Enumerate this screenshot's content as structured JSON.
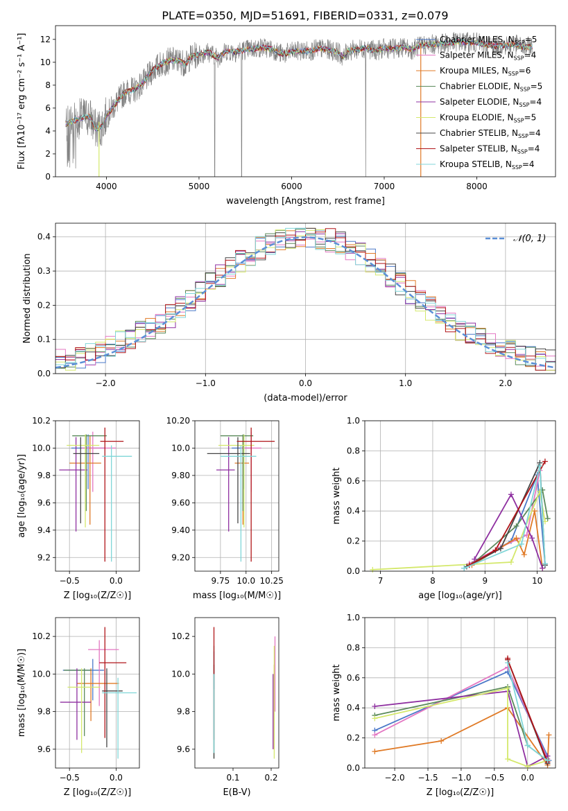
{
  "figure": {
    "title": "PLATE=0350, MJD=51691, FIBERID=0331, z=0.079"
  },
  "models": [
    {
      "name": "Chabrier MILES",
      "nssp": "5",
      "color": "#4a78c8"
    },
    {
      "name": "Salpeter MILES",
      "nssp": "4",
      "color": "#e377c2"
    },
    {
      "name": "Kroupa MILES",
      "nssp": "6",
      "color": "#e07a26"
    },
    {
      "name": "Chabrier ELODIE",
      "nssp": "5",
      "color": "#5b8a5b"
    },
    {
      "name": "Salpeter ELODIE",
      "nssp": "4",
      "color": "#8e2fa0"
    },
    {
      "name": "Kroupa ELODIE",
      "nssp": "5",
      "color": "#d4e86b"
    },
    {
      "name": "Chabrier STELIB",
      "nssp": "4",
      "color": "#444444"
    },
    {
      "name": "Salpeter STELIB",
      "nssp": "4",
      "color": "#b01418"
    },
    {
      "name": "Kroupa STELIB",
      "nssp": "4",
      "color": "#7fd6d8"
    }
  ],
  "colors": {
    "data": "#808080",
    "normal": "#5b8fd6",
    "grid": "#b0b0b0"
  },
  "chart_data": [
    {
      "id": "spectrum",
      "type": "line",
      "xlabel": "wavelength [Angstrom, rest frame]",
      "ylabel_tex": "Flux [fλ10⁻¹⁷ erg cm⁻² s⁻¹ A⁻¹]",
      "xlim": [
        3450,
        8850
      ],
      "ylim": [
        0,
        13.2
      ],
      "xticks": [
        4000,
        5000,
        6000,
        7000,
        8000
      ],
      "yticks": [
        0,
        2,
        4,
        6,
        8,
        10,
        12
      ],
      "grid": false,
      "legend": "top-right",
      "continuum": [
        [
          3560,
          4.6
        ],
        [
          3650,
          4.9
        ],
        [
          3750,
          5.2
        ],
        [
          3820,
          5.3
        ],
        [
          3880,
          4.2
        ],
        [
          3940,
          4.3
        ],
        [
          4000,
          5.3
        ],
        [
          4100,
          6.4
        ],
        [
          4200,
          7.4
        ],
        [
          4300,
          7.6
        ],
        [
          4400,
          8.2
        ],
        [
          4500,
          9.3
        ],
        [
          4600,
          9.9
        ],
        [
          4700,
          10.2
        ],
        [
          4800,
          10.1
        ],
        [
          4860,
          9.8
        ],
        [
          4900,
          10.4
        ],
        [
          5000,
          10.7
        ],
        [
          5100,
          10.9
        ],
        [
          5200,
          10.4
        ],
        [
          5300,
          11.0
        ],
        [
          5400,
          10.9
        ],
        [
          5500,
          11.1
        ],
        [
          5600,
          11.2
        ],
        [
          5700,
          11.3
        ],
        [
          5800,
          11.1
        ],
        [
          5900,
          10.7
        ],
        [
          6000,
          10.9
        ],
        [
          6100,
          11.0
        ],
        [
          6200,
          11.0
        ],
        [
          6300,
          11.2
        ],
        [
          6400,
          11.1
        ],
        [
          6500,
          10.9
        ],
        [
          6563,
          10.4
        ],
        [
          6600,
          11.0
        ],
        [
          6700,
          11.1
        ],
        [
          6800,
          11.3
        ],
        [
          6900,
          11.0
        ],
        [
          7000,
          11.2
        ],
        [
          7100,
          11.2
        ],
        [
          7200,
          11.3
        ],
        [
          7300,
          11.1
        ],
        [
          7400,
          11.5
        ],
        [
          7600,
          11.6
        ],
        [
          7800,
          11.8
        ],
        [
          8000,
          11.7
        ],
        [
          8200,
          11.4
        ],
        [
          8400,
          11.6
        ],
        [
          8500,
          11.3
        ],
        [
          8600,
          11.4
        ]
      ]
    },
    {
      "id": "residuals",
      "type": "area",
      "xlabel": "(data-model)/error",
      "ylabel": "Normed distribution",
      "xlim": [
        -2.5,
        2.5
      ],
      "ylim": [
        0,
        0.44
      ],
      "xticks": [
        -2,
        -1,
        0,
        1,
        2
      ],
      "yticks": [
        0.0,
        0.1,
        0.2,
        0.3,
        0.4
      ],
      "grid": true,
      "legend": "top-right",
      "normal_label": "𝒩(0, 1)",
      "bin_width": 0.1
    },
    {
      "id": "age-vs-Z",
      "type": "scatter",
      "xlabel": "Z [log₁₀(Z/Z☉)]",
      "ylabel": "age  [log₁₀(age/yr)]",
      "xlim": [
        -0.65,
        0.25
      ],
      "ylim": [
        9.1,
        10.2
      ],
      "xticks": [
        -0.5,
        0.0
      ],
      "yticks": [
        9.2,
        9.4,
        9.6,
        9.8,
        10.0,
        10.2
      ],
      "grid": true,
      "points": [
        {
          "x": -0.3,
          "xe": [
            0.18,
            0.18
          ],
          "y": 10.0,
          "ye": [
            0.3,
            0.1
          ]
        },
        {
          "x": -0.25,
          "xe": [
            0.12,
            0.25
          ],
          "y": 10.0,
          "ye": [
            0.32,
            0.12
          ]
        },
        {
          "x": -0.28,
          "xe": [
            0.22,
            0.12
          ],
          "y": 9.89,
          "ye": [
            0.45,
            0.2
          ]
        },
        {
          "x": -0.32,
          "xe": [
            0.15,
            0.22
          ],
          "y": 10.09,
          "ye": [
            0.55,
            0.01
          ]
        },
        {
          "x": -0.43,
          "xe": [
            0.18,
            0.12
          ],
          "y": 9.84,
          "ye": [
            0.45,
            0.24
          ]
        },
        {
          "x": -0.33,
          "xe": [
            0.2,
            0.15
          ],
          "y": 10.02,
          "ye": [
            0.6,
            0.08
          ]
        },
        {
          "x": -0.38,
          "xe": [
            0.08,
            0.2
          ],
          "y": 9.96,
          "ye": [
            0.51,
            0.12
          ]
        },
        {
          "x": -0.12,
          "xe": [
            0.05,
            0.2
          ],
          "y": 10.05,
          "ye": [
            0.88,
            0.1
          ]
        },
        {
          "x": -0.05,
          "xe": [
            0.1,
            0.22
          ],
          "y": 9.94,
          "ye": [
            0.77,
            0.08
          ]
        }
      ]
    },
    {
      "id": "age-vs-mass",
      "type": "scatter",
      "xlabel": "mass [log₁₀(M/M☉)]",
      "ylabel": "",
      "xlim": [
        9.5,
        10.32
      ],
      "ylim": [
        9.1,
        10.2
      ],
      "xticks": [
        9.75,
        10.0,
        10.25
      ],
      "yticks": [
        9.2,
        9.4,
        9.6,
        9.8,
        10.0,
        10.2
      ],
      "grid": true,
      "points": [
        {
          "x": 9.98,
          "xe": [
            0.12,
            0.06
          ],
          "y": 10.0,
          "ye": [
            0.3,
            0.1
          ]
        },
        {
          "x": 10.05,
          "xe": [
            0.1,
            0.1
          ],
          "y": 10.0,
          "ye": [
            0.32,
            0.12
          ]
        },
        {
          "x": 9.97,
          "xe": [
            0.08,
            0.06
          ],
          "y": 9.89,
          "ye": [
            0.45,
            0.2
          ]
        },
        {
          "x": 9.97,
          "xe": [
            0.22,
            0.1
          ],
          "y": 10.09,
          "ye": [
            0.55,
            0.01
          ]
        },
        {
          "x": 9.83,
          "xe": [
            0.12,
            0.06
          ],
          "y": 9.84,
          "ye": [
            0.45,
            0.24
          ]
        },
        {
          "x": 9.98,
          "xe": [
            0.25,
            0.1
          ],
          "y": 10.02,
          "ye": [
            0.6,
            0.08
          ]
        },
        {
          "x": 9.92,
          "xe": [
            0.3,
            0.12
          ],
          "y": 9.96,
          "ye": [
            0.51,
            0.12
          ]
        },
        {
          "x": 10.05,
          "xe": [
            0.14,
            0.23
          ],
          "y": 10.05,
          "ye": [
            0.88,
            0.1
          ]
        },
        {
          "x": 9.95,
          "xe": [
            0.2,
            0.15
          ],
          "y": 9.94,
          "ye": [
            0.77,
            0.08
          ]
        }
      ]
    },
    {
      "id": "weight-vs-age",
      "type": "line",
      "xlabel": "age  [log₁₀(age/yr)]",
      "ylabel": "mass weight",
      "xlim": [
        6.7,
        10.35
      ],
      "ylim": [
        0,
        1.0
      ],
      "xticks": [
        7,
        8,
        9,
        10
      ],
      "yticks": [
        0.0,
        0.2,
        0.4,
        0.6,
        0.8,
        1.0
      ],
      "grid": true,
      "series": [
        {
          "x": [
            8.6,
            9.5,
            10.0,
            10.15
          ],
          "y": [
            0.02,
            0.2,
            0.64,
            0.05
          ]
        },
        {
          "x": [
            8.7,
            9.3,
            9.8,
            10.05
          ],
          "y": [
            0.05,
            0.16,
            0.24,
            0.67
          ]
        },
        {
          "x": [
            8.75,
            9.6,
            9.75,
            9.95,
            10.1
          ],
          "y": [
            0.04,
            0.22,
            0.11,
            0.4,
            0.02
          ]
        },
        {
          "x": [
            8.8,
            9.6,
            10.1,
            10.2
          ],
          "y": [
            0.06,
            0.3,
            0.54,
            0.35
          ]
        },
        {
          "x": [
            8.8,
            9.5,
            9.9,
            10.1
          ],
          "y": [
            0.08,
            0.51,
            0.22,
            0.02
          ]
        },
        {
          "x": [
            6.85,
            9.5,
            10.05,
            10.15
          ],
          "y": [
            0.01,
            0.06,
            0.53,
            0.33
          ]
        },
        {
          "x": [
            8.65,
            9.3,
            10.05,
            10.15
          ],
          "y": [
            0.03,
            0.15,
            0.72,
            0.04
          ]
        },
        {
          "x": [
            8.7,
            9.2,
            10.15
          ],
          "y": [
            0.04,
            0.14,
            0.73
          ]
        },
        {
          "x": [
            8.6,
            9.7,
            10.05,
            10.15
          ],
          "y": [
            0.02,
            0.18,
            0.7,
            0.05
          ]
        }
      ]
    },
    {
      "id": "mass-vs-Z",
      "type": "scatter",
      "xlabel": "Z [log₁₀(Z/Z☉)]",
      "ylabel": "mass [log₁₀(M/M☉)]",
      "xlim": [
        -0.65,
        0.25
      ],
      "ylim": [
        9.5,
        10.3
      ],
      "xticks": [
        -0.5,
        0.0
      ],
      "yticks": [
        9.6,
        9.8,
        10.0,
        10.2
      ],
      "grid": true,
      "points": [
        {
          "x": -0.25,
          "xe": [
            0.32,
            0.12
          ],
          "y": 10.02,
          "ye": [
            0.16,
            0.06
          ]
        },
        {
          "x": -0.18,
          "xe": [
            0.12,
            0.21
          ],
          "y": 10.13,
          "ye": [
            0.3,
            0.05
          ]
        },
        {
          "x": -0.27,
          "xe": [
            0.15,
            0.3
          ],
          "y": 9.95,
          "ye": [
            0.2,
            0.08
          ]
        },
        {
          "x": -0.34,
          "xe": [
            0.22,
            0.07
          ],
          "y": 10.02,
          "ye": [
            0.35,
            0.01
          ]
        },
        {
          "x": -0.42,
          "xe": [
            0.18,
            0.15
          ],
          "y": 9.85,
          "ye": [
            0.2,
            0.18
          ]
        },
        {
          "x": -0.37,
          "xe": [
            0.15,
            0.2
          ],
          "y": 9.93,
          "ye": [
            0.35,
            0.1
          ]
        },
        {
          "x": -0.1,
          "xe": [
            0.05,
            0.17
          ],
          "y": 9.91,
          "ye": [
            0.3,
            0.12
          ]
        },
        {
          "x": -0.12,
          "xe": [
            0.06,
            0.23
          ],
          "y": 10.06,
          "ye": [
            0.4,
            0.19
          ]
        },
        {
          "x": 0.02,
          "xe": [
            0.17,
            0.2
          ],
          "y": 9.9,
          "ye": [
            0.35,
            0.08
          ]
        }
      ]
    },
    {
      "id": "mass-vs-ebv",
      "type": "scatter",
      "xlabel": "E(B-V)",
      "ylabel": "",
      "xlim": [
        0.0,
        0.22
      ],
      "ylim": [
        9.5,
        10.3
      ],
      "xticks": [
        0.1,
        0.2
      ],
      "yticks": [
        9.6,
        9.8,
        10.0,
        10.2
      ],
      "grid": false,
      "points": [
        {
          "x": 0.05,
          "xe": [
            0,
            0
          ],
          "y": 10.02,
          "ye": [
            0.1,
            0.1
          ]
        },
        {
          "x": 0.21,
          "xe": [
            0,
            0
          ],
          "y": 10.1,
          "ye": [
            0.3,
            0.1
          ]
        },
        {
          "x": 0.208,
          "xe": [
            0,
            0
          ],
          "y": 9.95,
          "ye": [
            0.35,
            0.1
          ]
        },
        {
          "x": 0.05,
          "xe": [
            0,
            0
          ],
          "y": 9.85,
          "ye": [
            0.3,
            0.3
          ]
        },
        {
          "x": 0.205,
          "xe": [
            0,
            0
          ],
          "y": 9.85,
          "ye": [
            0.25,
            0.15
          ]
        },
        {
          "x": 0.208,
          "xe": [
            0,
            0
          ],
          "y": 9.95,
          "ye": [
            0.4,
            0.2
          ]
        },
        {
          "x": 0.05,
          "xe": [
            0,
            0
          ],
          "y": 9.85,
          "ye": [
            0.3,
            0.2
          ]
        },
        {
          "x": 0.05,
          "xe": [
            0,
            0
          ],
          "y": 10.05,
          "ye": [
            0.4,
            0.2
          ]
        },
        {
          "x": 0.05,
          "xe": [
            0,
            0
          ],
          "y": 9.9,
          "ye": [
            0.32,
            0.1
          ]
        }
      ]
    },
    {
      "id": "weight-vs-Z",
      "type": "line",
      "xlabel": "Z [log₁₀(Z/Z☉)]",
      "ylabel": "mass weight",
      "xlim": [
        -2.45,
        0.42
      ],
      "ylim": [
        0,
        1.0
      ],
      "xticks": [
        -2.0,
        -1.5,
        -1.0,
        -0.5,
        0.0
      ],
      "yticks": [
        0.0,
        0.2,
        0.4,
        0.6,
        0.8,
        1.0
      ],
      "grid": true,
      "series": [
        {
          "x": [
            -2.3,
            -0.3,
            0.3,
            0.32
          ],
          "y": [
            0.25,
            0.64,
            0.08,
            0.05
          ]
        },
        {
          "x": [
            -2.3,
            -0.3,
            0.3
          ],
          "y": [
            0.22,
            0.67,
            0.06
          ]
        },
        {
          "x": [
            -2.3,
            -1.3,
            -0.3,
            0.3,
            0.32
          ],
          "y": [
            0.11,
            0.18,
            0.4,
            0.02,
            0.22
          ]
        },
        {
          "x": [
            -2.3,
            -0.3,
            0.0,
            0.3
          ],
          "y": [
            0.35,
            0.54,
            0.15,
            0.05
          ]
        },
        {
          "x": [
            -2.3,
            -0.3,
            0.0,
            0.3
          ],
          "y": [
            0.41,
            0.51,
            0.01,
            0.08
          ]
        },
        {
          "x": [
            -2.3,
            -0.3,
            -0.3,
            0.0,
            0.3
          ],
          "y": [
            0.33,
            0.53,
            0.06,
            0.01,
            0.05
          ]
        },
        {
          "x": [
            -0.3,
            0.3
          ],
          "y": [
            0.72,
            0.03
          ]
        },
        {
          "x": [
            -0.3,
            -0.3,
            0.3
          ],
          "y": [
            0.73,
            0.72,
            0.04
          ]
        },
        {
          "x": [
            -0.3,
            0.0,
            0.3
          ],
          "y": [
            0.7,
            0.15,
            0.05
          ]
        }
      ]
    }
  ]
}
